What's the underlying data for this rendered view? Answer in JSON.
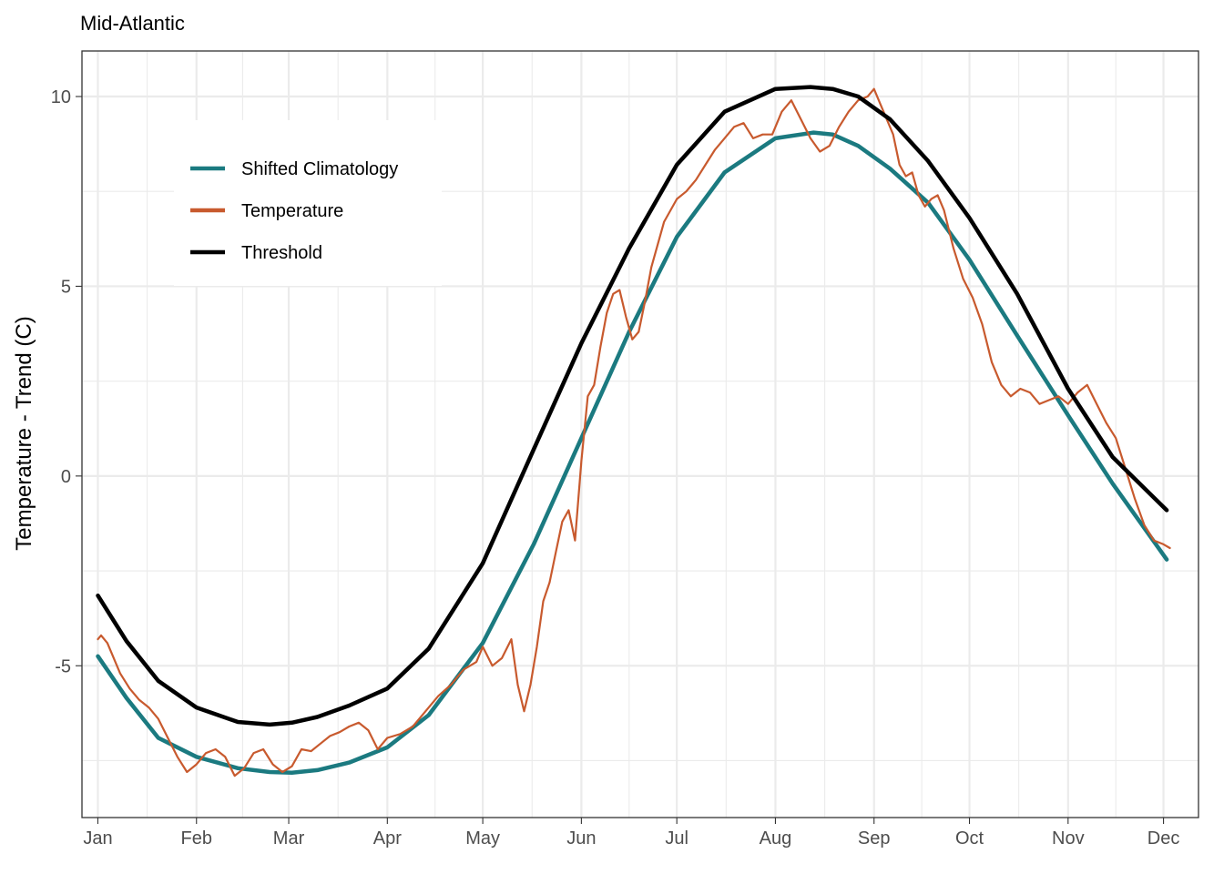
{
  "chart_data": {
    "type": "line",
    "title": "Mid-Atlantic",
    "xlabel": "",
    "ylabel": "Temperature - Trend (C)",
    "x_unit": "day of year",
    "xlim": [
      -4,
      347
    ],
    "ylim": [
      -9,
      11.2
    ],
    "yticks": [
      -5,
      0,
      5,
      10
    ],
    "xticks": [
      {
        "label": "Jan",
        "day": 1
      },
      {
        "label": "Feb",
        "day": 32
      },
      {
        "label": "Mar",
        "day": 61
      },
      {
        "label": "Apr",
        "day": 92
      },
      {
        "label": "May",
        "day": 122
      },
      {
        "label": "Jun",
        "day": 153
      },
      {
        "label": "Jul",
        "day": 183
      },
      {
        "label": "Aug",
        "day": 214
      },
      {
        "label": "Sep",
        "day": 245
      },
      {
        "label": "Oct",
        "day": 275
      },
      {
        "label": "Nov",
        "day": 306
      },
      {
        "label": "Dec",
        "day": 336
      }
    ],
    "grid": true,
    "legend_position": "top-left inside",
    "series": [
      {
        "name": "Shifted Climatology",
        "color": "#1B7A80",
        "x": [
          1,
          10,
          20,
          32,
          45,
          55,
          62,
          70,
          80,
          92,
          105,
          122,
          138,
          153,
          168,
          183,
          198,
          214,
          226,
          232,
          240,
          250,
          262,
          275,
          290,
          306,
          320,
          337
        ],
        "y": [
          -4.75,
          -5.85,
          -6.9,
          -7.4,
          -7.7,
          -7.8,
          -7.82,
          -7.75,
          -7.55,
          -7.15,
          -6.3,
          -4.4,
          -1.8,
          1.0,
          3.8,
          6.3,
          8.0,
          8.9,
          9.05,
          9.0,
          8.7,
          8.1,
          7.2,
          5.7,
          3.7,
          1.6,
          -0.2,
          -2.2
        ]
      },
      {
        "name": "Temperature",
        "color": "#C85A2E",
        "x": [
          1,
          2,
          4,
          6,
          8,
          11,
          14,
          17,
          20,
          23,
          26,
          29,
          32,
          35,
          38,
          41,
          44,
          47,
          50,
          53,
          56,
          59,
          62,
          65,
          68,
          71,
          74,
          77,
          80,
          83,
          86,
          89,
          92,
          96,
          100,
          104,
          108,
          112,
          116,
          120,
          122,
          125,
          128,
          131,
          133,
          135,
          137,
          139,
          141,
          143,
          145,
          147,
          149,
          151,
          153,
          155,
          157,
          159,
          161,
          163,
          165,
          167,
          169,
          171,
          173,
          175,
          177,
          179,
          181,
          183,
          186,
          189,
          192,
          195,
          198,
          201,
          204,
          207,
          210,
          213,
          216,
          219,
          222,
          225,
          228,
          231,
          234,
          237,
          240,
          243,
          245,
          247,
          249,
          251,
          253,
          255,
          257,
          259,
          261,
          263,
          265,
          267,
          270,
          273,
          276,
          279,
          282,
          285,
          288,
          291,
          294,
          297,
          300,
          303,
          306,
          309,
          312,
          315,
          318,
          321,
          324,
          327,
          330,
          333,
          336,
          338
        ],
        "y": [
          -4.3,
          -4.2,
          -4.4,
          -4.8,
          -5.2,
          -5.6,
          -5.9,
          -6.1,
          -6.4,
          -6.9,
          -7.4,
          -7.8,
          -7.6,
          -7.3,
          -7.2,
          -7.4,
          -7.9,
          -7.7,
          -7.3,
          -7.2,
          -7.6,
          -7.8,
          -7.65,
          -7.2,
          -7.25,
          -7.05,
          -6.85,
          -6.75,
          -6.6,
          -6.5,
          -6.7,
          -7.2,
          -6.9,
          -6.8,
          -6.6,
          -6.2,
          -5.8,
          -5.5,
          -5.1,
          -4.9,
          -4.5,
          -5.0,
          -4.8,
          -4.3,
          -5.5,
          -6.2,
          -5.5,
          -4.5,
          -3.3,
          -2.8,
          -2.0,
          -1.2,
          -0.9,
          -1.7,
          0.4,
          2.1,
          2.4,
          3.4,
          4.3,
          4.8,
          4.9,
          4.2,
          3.6,
          3.8,
          4.6,
          5.5,
          6.1,
          6.7,
          7.0,
          7.3,
          7.5,
          7.8,
          8.2,
          8.6,
          8.9,
          9.2,
          9.3,
          8.9,
          9.0,
          9.0,
          9.6,
          9.9,
          9.4,
          8.9,
          8.55,
          8.7,
          9.2,
          9.6,
          9.9,
          10.0,
          10.2,
          9.8,
          9.4,
          9.0,
          8.2,
          7.9,
          8.0,
          7.4,
          7.1,
          7.3,
          7.4,
          7.0,
          6.0,
          5.2,
          4.7,
          4.0,
          3.0,
          2.4,
          2.1,
          2.3,
          2.2,
          1.9,
          2.0,
          2.1,
          1.9,
          2.2,
          2.4,
          1.9,
          1.4,
          1.0,
          0.2,
          -0.6,
          -1.3,
          -1.7,
          -1.8,
          -1.9
        ]
      },
      {
        "name": "Threshold",
        "color": "#000000",
        "x": [
          1,
          10,
          20,
          32,
          45,
          55,
          62,
          70,
          80,
          92,
          105,
          122,
          138,
          153,
          168,
          183,
          198,
          214,
          225,
          232,
          240,
          250,
          262,
          275,
          290,
          306,
          320,
          337
        ],
        "y": [
          -3.15,
          -4.35,
          -5.4,
          -6.1,
          -6.48,
          -6.55,
          -6.5,
          -6.35,
          -6.05,
          -5.6,
          -4.55,
          -2.3,
          0.7,
          3.5,
          6.0,
          8.2,
          9.6,
          10.2,
          10.25,
          10.2,
          10.0,
          9.4,
          8.3,
          6.8,
          4.8,
          2.3,
          0.5,
          -0.9
        ]
      }
    ]
  }
}
